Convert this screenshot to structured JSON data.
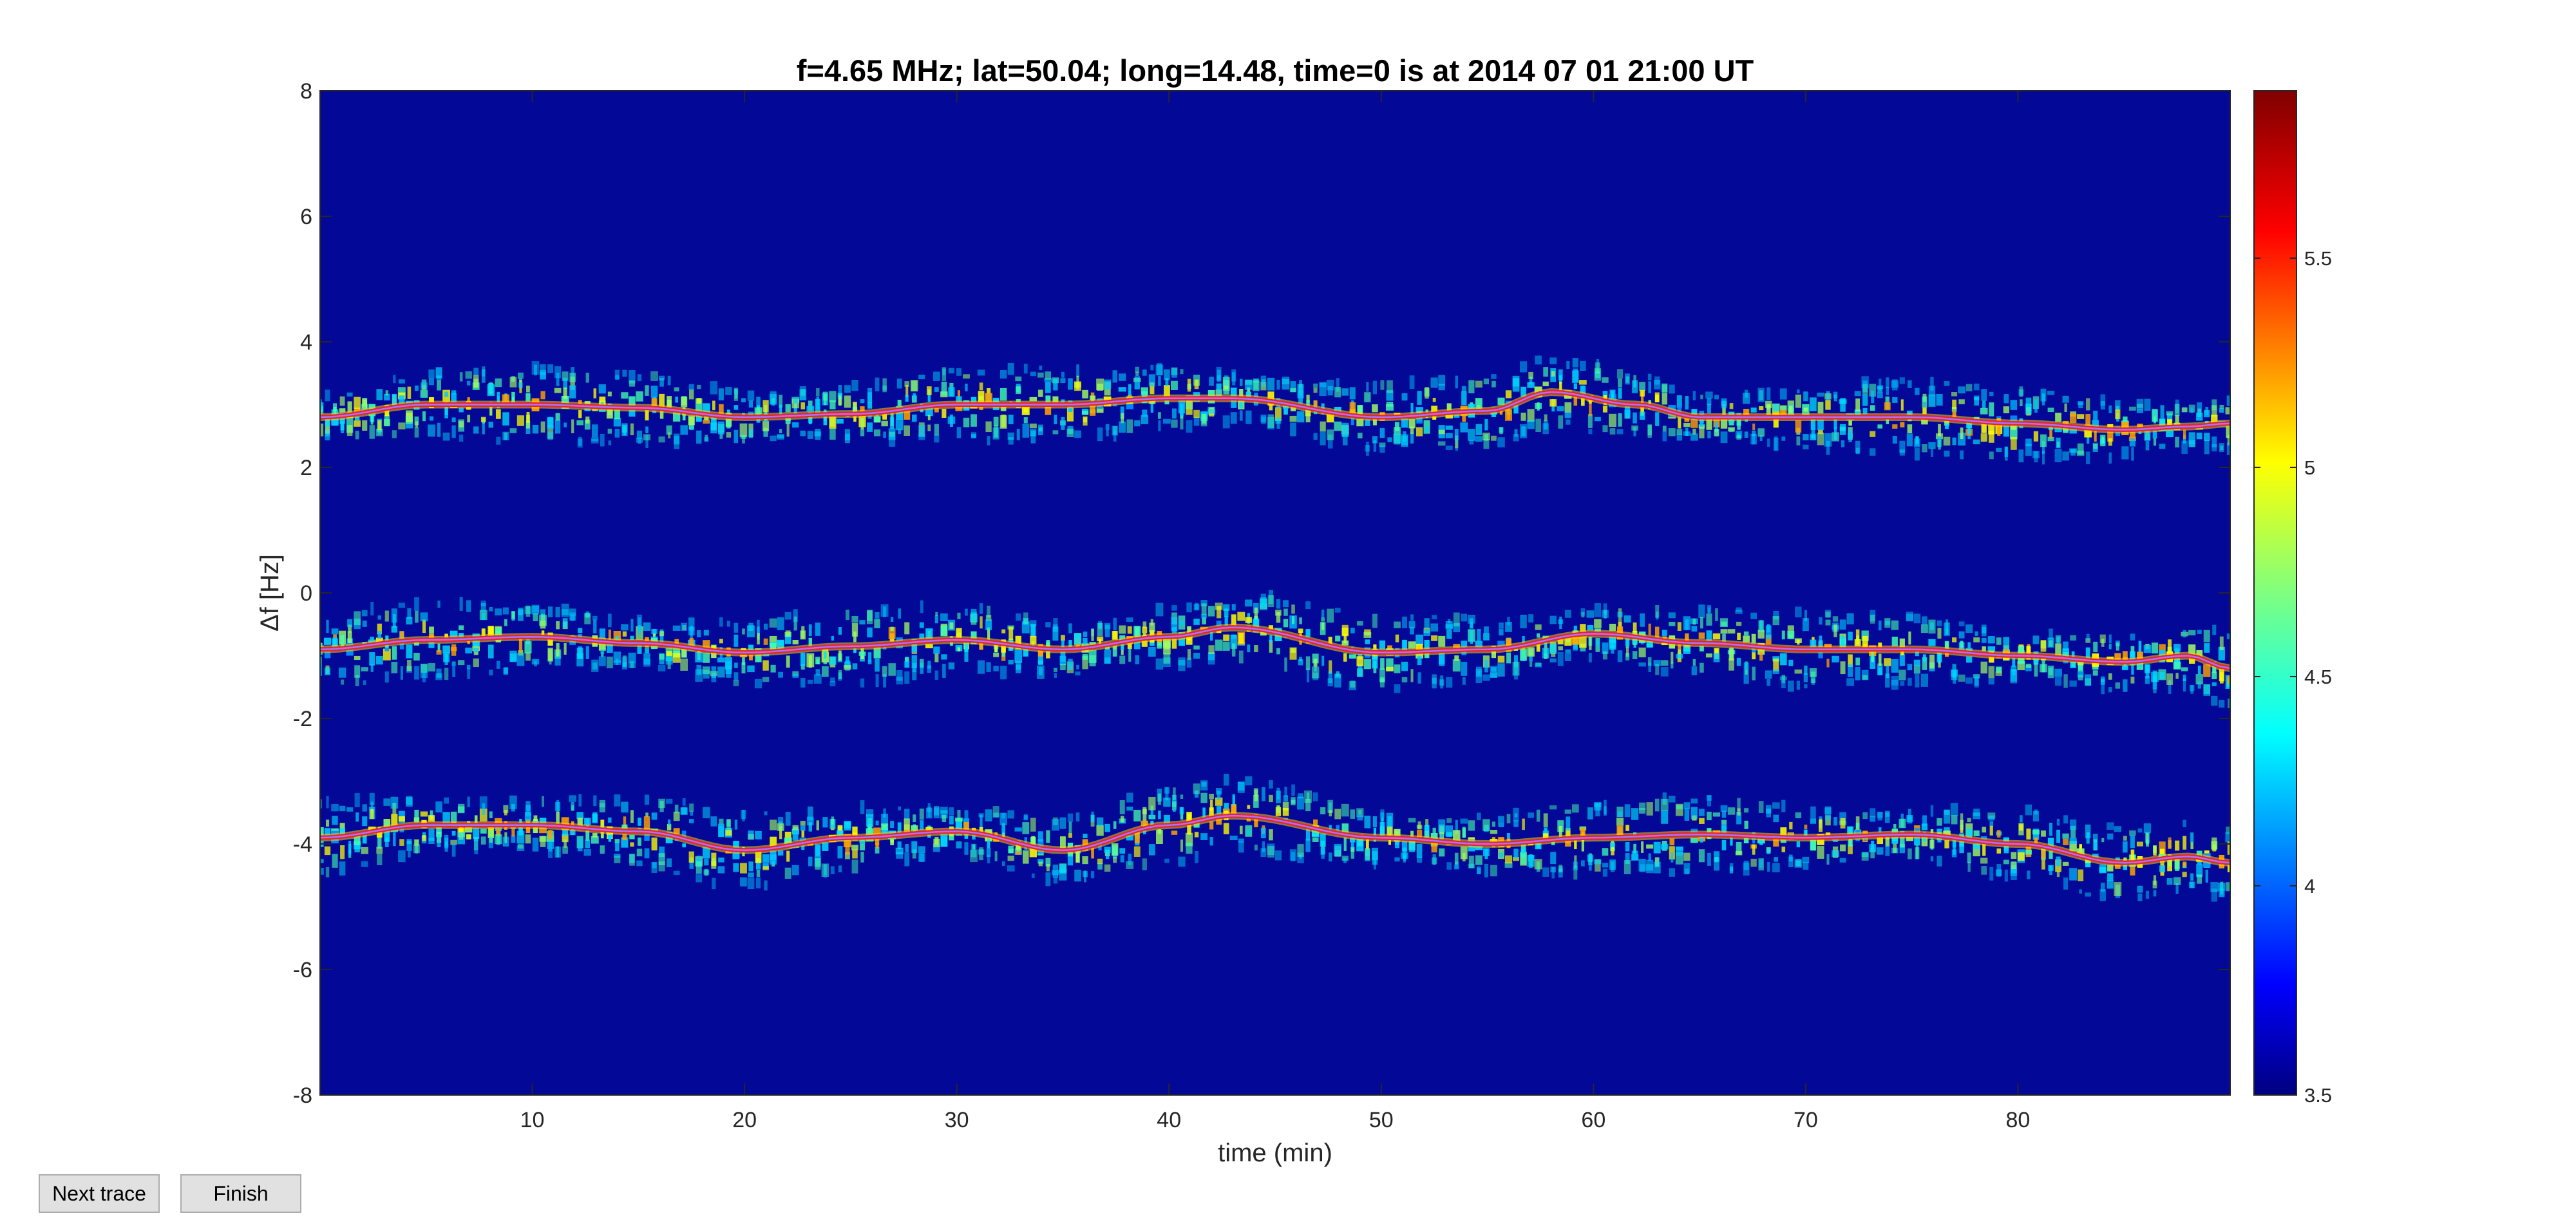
{
  "buttons": {
    "next_trace": "Next trace",
    "finish": "Finish"
  },
  "chart_data": {
    "type": "heatmap",
    "title": "f=4.65 MHz;  lat=50.04; long=14.48, time=0 is at 2014 07 01 21:00 UT",
    "xlabel": "time (min)",
    "ylabel": "Δf [Hz]",
    "xlim": [
      0,
      90
    ],
    "ylim": [
      -8,
      8
    ],
    "xticks": [
      "10",
      "20",
      "30",
      "40",
      "50",
      "60",
      "70",
      "80"
    ],
    "yticks": [
      "8",
      "6",
      "4",
      "2",
      "0",
      "-2",
      "-4",
      "-6",
      "-8"
    ],
    "colormap": "jet",
    "colorbar": {
      "range": [
        3.5,
        5.9
      ],
      "ticks": [
        "5.5",
        "5",
        "4.5",
        "4",
        "3.5"
      ]
    },
    "background_color": "#00008f",
    "trace_color": "#e8242a",
    "fit_line_color": "#b070ff",
    "traces": [
      {
        "x": [
          0,
          5,
          10,
          15,
          20,
          25,
          30,
          35,
          40,
          43,
          50,
          55,
          58,
          62,
          65,
          70,
          75,
          80,
          85,
          88,
          90
        ],
        "y": [
          2.8,
          3.0,
          3.0,
          2.95,
          2.8,
          2.85,
          3.0,
          3.0,
          3.1,
          3.1,
          2.8,
          2.9,
          3.2,
          3.0,
          2.8,
          2.8,
          2.8,
          2.7,
          2.6,
          2.65,
          2.7
        ]
      },
      {
        "x": [
          0,
          5,
          10,
          15,
          20,
          25,
          30,
          35,
          40,
          43,
          50,
          55,
          60,
          65,
          70,
          75,
          80,
          85,
          88,
          90
        ],
        "y": [
          -0.9,
          -0.75,
          -0.7,
          -0.8,
          -0.95,
          -0.85,
          -0.75,
          -0.9,
          -0.7,
          -0.55,
          -0.95,
          -0.9,
          -0.65,
          -0.8,
          -0.9,
          -0.9,
          -1.0,
          -1.1,
          -1.0,
          -1.2
        ]
      },
      {
        "x": [
          0,
          5,
          10,
          15,
          20,
          25,
          30,
          35,
          40,
          43,
          50,
          55,
          60,
          65,
          70,
          75,
          80,
          85,
          88,
          90
        ],
        "y": [
          -3.9,
          -3.7,
          -3.7,
          -3.8,
          -4.1,
          -3.9,
          -3.8,
          -4.1,
          -3.7,
          -3.55,
          -3.9,
          -4.0,
          -3.9,
          -3.85,
          -3.9,
          -3.85,
          -4.0,
          -4.3,
          -4.2,
          -4.3
        ]
      }
    ]
  }
}
